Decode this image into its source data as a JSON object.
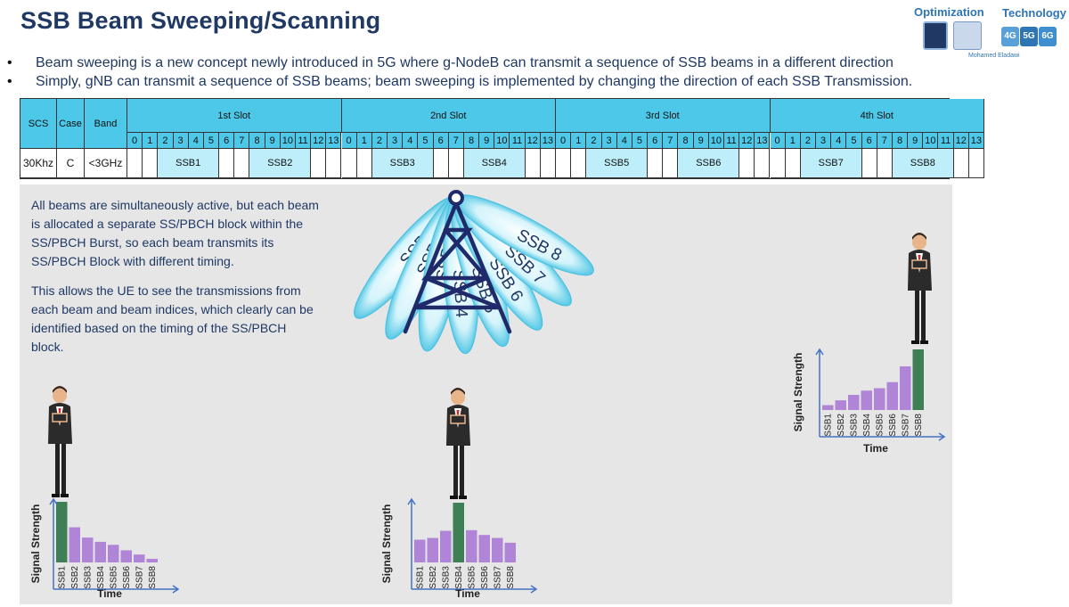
{
  "title": "SSB Beam Sweeping/Scanning",
  "brand": {
    "left_label": "Optimization",
    "right_label": "Technology",
    "author": "Mohamed Eladawi",
    "generations": [
      "4G",
      "5G",
      "6G"
    ]
  },
  "bullets": [
    "Beam sweeping is a new concept newly introduced in 5G where g-NodeB can transmit a sequence of SSB beams in a different direction",
    "Simply, gNB can transmit a sequence of SSB beams; beam sweeping is implemented by changing the direction of each SSB Transmission."
  ],
  "bullet_glyph": "•",
  "table": {
    "headers": [
      "SCS",
      "Case",
      "Band"
    ],
    "values": [
      "30Khz",
      "C",
      "<3GHz"
    ],
    "slots": [
      "1st Slot",
      "2nd Slot",
      "3rd Slot",
      "4th Slot"
    ],
    "symbols": [
      "0",
      "1",
      "2",
      "3",
      "4",
      "5",
      "6",
      "7",
      "8",
      "9",
      "10",
      "11",
      "12",
      "13"
    ],
    "ssb_blocks": [
      {
        "label": "SSB1",
        "slot": 0,
        "start": 2,
        "span": 4
      },
      {
        "label": "SSB2",
        "slot": 0,
        "start": 8,
        "span": 4
      },
      {
        "label": "SSB3",
        "slot": 1,
        "start": 2,
        "span": 4
      },
      {
        "label": "SSB4",
        "slot": 1,
        "start": 8,
        "span": 4
      },
      {
        "label": "SSB5",
        "slot": 2,
        "start": 2,
        "span": 4
      },
      {
        "label": "SSB6",
        "slot": 2,
        "start": 8,
        "span": 4
      },
      {
        "label": "SSB7",
        "slot": 3,
        "start": 2,
        "span": 4
      },
      {
        "label": "SSB8",
        "slot": 3,
        "start": 8,
        "span": 4
      }
    ],
    "colors": {
      "header": "#4dc8e8",
      "ssb": "#bdeef9",
      "border": "#333333"
    }
  },
  "paragraphs": [
    "All beams are simultaneously active, but each beam is allocated a separate SS/PBCH block within the SS/PBCH Burst, so each beam transmits its SS/PBCH Block with different timing.",
    "This allows the UE to see the transmissions from each beam and beam indices, which clearly can be identified based on the timing of the SS/PBCH block."
  ],
  "beams": [
    "SSB 1",
    "SSB 2",
    "SSB 3",
    "SSB 4",
    "SSB 5",
    "SSB 6",
    "SSB 7",
    "SSB 8"
  ],
  "chart_data": [
    {
      "type": "bar",
      "categories": [
        "SSB1",
        "SSB2",
        "SSB3",
        "SSB4",
        "SSB5",
        "SSB6",
        "SSB7",
        "SSB8"
      ],
      "values": [
        10,
        5.8,
        4.1,
        3.4,
        2.9,
        2.0,
        1.3,
        0.6
      ],
      "highlight": 0,
      "ylabel": "Signal Strength",
      "xlabel": "Time"
    },
    {
      "type": "bar",
      "categories": [
        "SSB1",
        "SSB2",
        "SSB3",
        "SSB4",
        "SSB5",
        "SSB6",
        "SSB7",
        "SSB8"
      ],
      "values": [
        3.8,
        4.1,
        5.3,
        10,
        5.4,
        4.6,
        4.1,
        3.3
      ],
      "highlight": 3,
      "ylabel": "Signal Strength",
      "xlabel": "Time"
    },
    {
      "type": "bar",
      "categories": [
        "SSB1",
        "SSB2",
        "SSB3",
        "SSB4",
        "SSB5",
        "SSB6",
        "SSB7",
        "SSB8"
      ],
      "values": [
        0.8,
        1.6,
        2.5,
        3.2,
        3.6,
        4.6,
        7.2,
        10
      ],
      "highlight": 7,
      "ylabel": "Signal Strength",
      "xlabel": "Time"
    }
  ],
  "chart_colors": {
    "bar": "#b084d6",
    "highlight": "#3f7f56",
    "axis": "#4472c4"
  }
}
